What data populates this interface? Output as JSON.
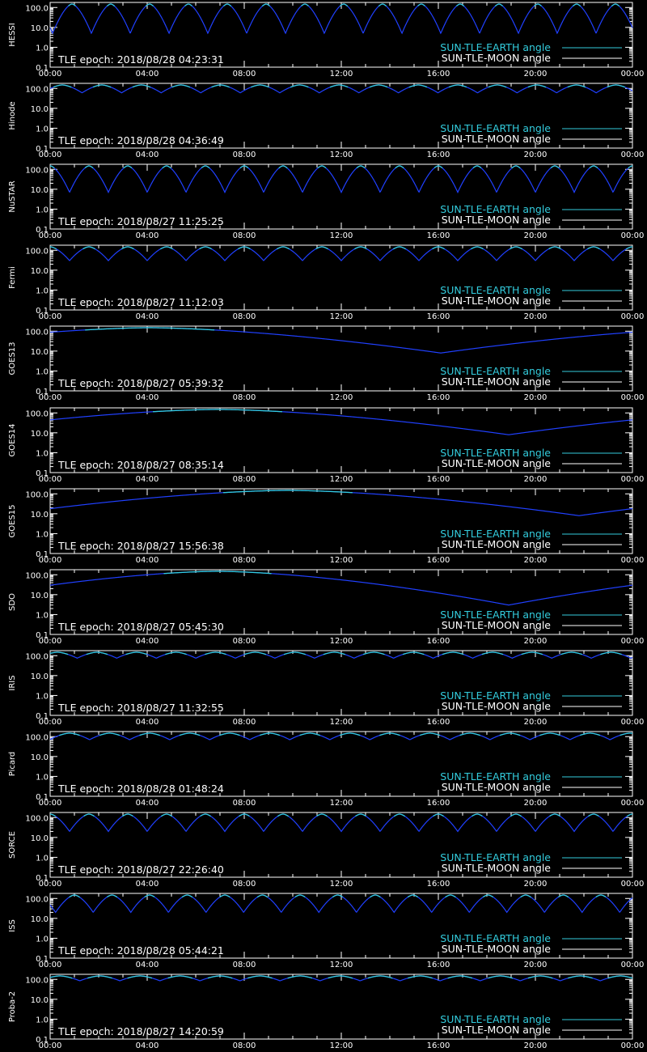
{
  "chart_data": [
    {
      "type": "line",
      "name": "HESSI",
      "epoch": "TLE epoch: 2018/08/28 04:23:31",
      "period_h": 1.6,
      "dip": 5,
      "phase": 0.9
    },
    {
      "type": "line",
      "name": "Hinode",
      "epoch": "TLE epoch: 2018/08/28 04:36:49",
      "period_h": 1.63,
      "dip": 60,
      "phase": 0.5
    },
    {
      "type": "line",
      "name": "NuSTAR",
      "epoch": "TLE epoch: 2018/08/27 11:25:25",
      "period_h": 1.6,
      "dip": 7,
      "phase": 1.6
    },
    {
      "type": "line",
      "name": "Fermi",
      "epoch": "TLE epoch: 2018/08/27 11:12:03",
      "period_h": 1.6,
      "dip": 30,
      "phase": 1.6
    },
    {
      "type": "line",
      "name": "GOES13",
      "epoch": "TLE epoch: 2018/08/27 05:39:32",
      "period_h": 24,
      "dip": 8,
      "phase": 4.1
    },
    {
      "type": "line",
      "name": "GOES14",
      "epoch": "TLE epoch: 2018/08/27 08:35:14",
      "period_h": 24,
      "dip": 8,
      "phase": 6.9
    },
    {
      "type": "line",
      "name": "GOES15",
      "epoch": "TLE epoch: 2018/08/27 15:56:38",
      "period_h": 24,
      "dip": 8,
      "phase": 9.8
    },
    {
      "type": "line",
      "name": "SDO",
      "epoch": "TLE epoch: 2018/08/27 05:45:30",
      "period_h": 24,
      "dip": 3,
      "phase": 6.9
    },
    {
      "type": "line",
      "name": "IRIS",
      "epoch": "TLE epoch: 2018/08/27 11:32:55",
      "period_h": 1.63,
      "dip": 75,
      "phase": 0.3
    },
    {
      "type": "line",
      "name": "Picard",
      "epoch": "TLE epoch: 2018/08/28 01:48:24",
      "period_h": 1.65,
      "dip": 70,
      "phase": 0.8
    },
    {
      "type": "line",
      "name": "SORCE",
      "epoch": "TLE epoch: 2018/08/27 22:26:40",
      "period_h": 1.6,
      "dip": 20,
      "phase": 1.6
    },
    {
      "type": "line",
      "name": "ISS",
      "epoch": "TLE epoch: 2018/08/28 05:44:21",
      "period_h": 1.55,
      "dip": 20,
      "phase": 1.0
    },
    {
      "type": "line",
      "name": "Proba-2",
      "epoch": "TLE epoch: 2018/08/27 14:20:59",
      "period_h": 1.65,
      "dip": 85,
      "phase": 0.4
    }
  ],
  "axes": {
    "x_ticks": [
      "00:00",
      "04:00",
      "08:00",
      "12:00",
      "16:00",
      "20:00",
      "00:00"
    ],
    "x_range_hours": [
      0,
      24
    ],
    "y_ticks": [
      "100.0",
      "10.0",
      "1.0",
      "0.1"
    ],
    "y_range": [
      0.1,
      180
    ],
    "y_scale": "log"
  },
  "legend": {
    "earth_label": "SUN-TLE-EARTH angle",
    "moon_label": "SUN-TLE-MOON angle",
    "placement": "bottom-right"
  },
  "colors": {
    "earth": "#33ccdd",
    "moon": "#ffffff",
    "curve_below": "#2040ff",
    "background": "#000000",
    "axes": "#ffffff"
  }
}
